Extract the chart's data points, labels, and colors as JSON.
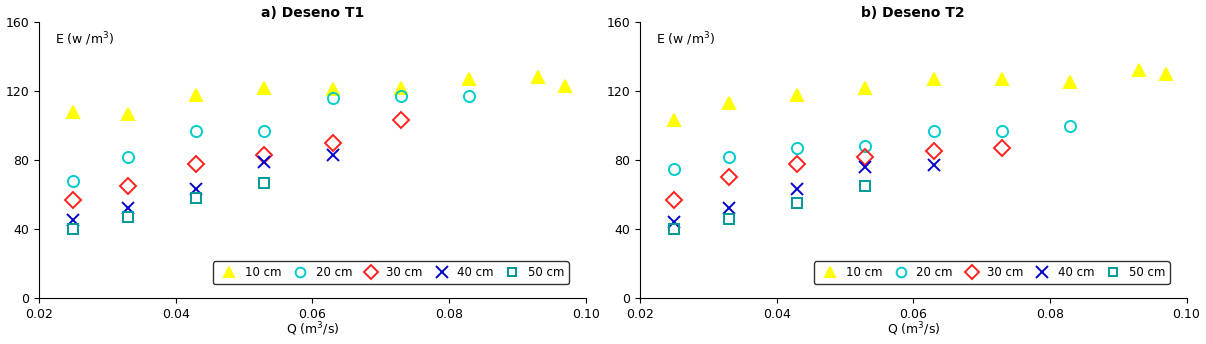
{
  "title_left": "a) Deseno T1",
  "title_right": "b) Deseno T2",
  "ylim": [
    0,
    160
  ],
  "xlim": [
    0.02,
    0.1
  ],
  "T1": {
    "10cm": {
      "Q": [
        0.025,
        0.033,
        0.043,
        0.053,
        0.063,
        0.073,
        0.083,
        0.093,
        0.097
      ],
      "E": [
        108,
        107,
        118,
        122,
        121,
        122,
        127,
        128,
        123
      ]
    },
    "20cm": {
      "Q": [
        0.025,
        0.033,
        0.043,
        0.053,
        0.063,
        0.073,
        0.083
      ],
      "E": [
        68,
        82,
        97,
        97,
        116,
        117,
        117
      ]
    },
    "30cm": {
      "Q": [
        0.025,
        0.033,
        0.043,
        0.053,
        0.063,
        0.073
      ],
      "E": [
        57,
        65,
        78,
        83,
        90,
        103
      ]
    },
    "40cm": {
      "Q": [
        0.025,
        0.033,
        0.043,
        0.053,
        0.063
      ],
      "E": [
        45,
        52,
        63,
        79,
        83
      ]
    },
    "50cm": {
      "Q": [
        0.025,
        0.033,
        0.043,
        0.053
      ],
      "E": [
        40,
        47,
        58,
        67
      ]
    }
  },
  "T2": {
    "10cm": {
      "Q": [
        0.025,
        0.033,
        0.043,
        0.053,
        0.063,
        0.073,
        0.083,
        0.093,
        0.097
      ],
      "E": [
        103,
        113,
        118,
        122,
        127,
        127,
        125,
        132,
        130
      ]
    },
    "20cm": {
      "Q": [
        0.025,
        0.033,
        0.043,
        0.053,
        0.063,
        0.073,
        0.083
      ],
      "E": [
        75,
        82,
        87,
        88,
        97,
        97,
        100
      ]
    },
    "30cm": {
      "Q": [
        0.025,
        0.033,
        0.043,
        0.053,
        0.063,
        0.073
      ],
      "E": [
        57,
        70,
        78,
        82,
        85,
        87
      ]
    },
    "40cm": {
      "Q": [
        0.025,
        0.033,
        0.043,
        0.053,
        0.063
      ],
      "E": [
        44,
        52,
        63,
        76,
        77
      ]
    },
    "50cm": {
      "Q": [
        0.025,
        0.033,
        0.043,
        0.053
      ],
      "E": [
        40,
        46,
        55,
        65
      ]
    }
  },
  "series": [
    {
      "label": "10 cm",
      "color": "#FFFF00",
      "marker": "^",
      "ms": 8,
      "hollow": false
    },
    {
      "label": "20 cm",
      "color": "#00CCCC",
      "marker": "o",
      "ms": 8,
      "hollow": true
    },
    {
      "label": "30 cm",
      "color": "#FF2020",
      "marker": "D",
      "ms": 8,
      "hollow": true
    },
    {
      "label": "40 cm",
      "color": "#0000CC",
      "marker": "x",
      "ms": 9,
      "hollow": false
    },
    {
      "label": "50 cm",
      "color": "#009999",
      "marker": "s",
      "ms": 7,
      "hollow": true
    }
  ],
  "yticks": [
    0,
    40,
    80,
    120,
    160
  ],
  "xticks": [
    0.02,
    0.04,
    0.06,
    0.08,
    0.1
  ],
  "xlabel_text": "Q (m",
  "xlabel_super": "3",
  "xlabel_rest": "/s)",
  "ylabel_text": "E (w /m",
  "ylabel_super": "3",
  "ylabel_rest": ")"
}
